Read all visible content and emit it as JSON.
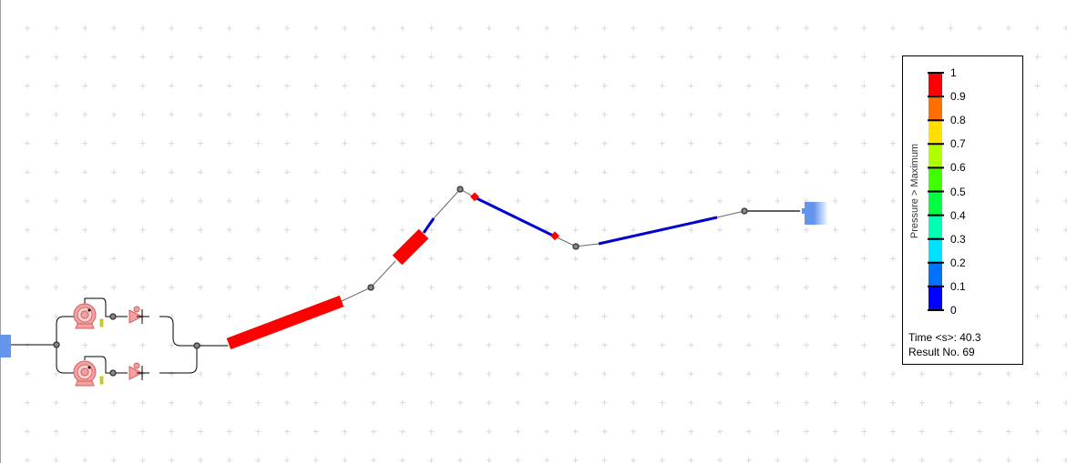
{
  "legend": {
    "title": "Pressure > Maximum",
    "ticks": [
      "1",
      "0.9",
      "0.8",
      "0.7",
      "0.6",
      "0.5",
      "0.4",
      "0.3",
      "0.2",
      "0.1",
      "0"
    ],
    "colors": [
      "#ff0000",
      "#ff7000",
      "#ffe000",
      "#b0ff00",
      "#40ff00",
      "#00ff40",
      "#00ffb0",
      "#00e0ff",
      "#0070ff",
      "#0000ff"
    ],
    "time": "Time <s>: 40.3",
    "result": "Result No. 69"
  },
  "colors": {
    "pipe_high": "#ff0000",
    "pipe_low": "#0000cc",
    "reservoir": "#6495ed",
    "pump": "#f08080"
  }
}
